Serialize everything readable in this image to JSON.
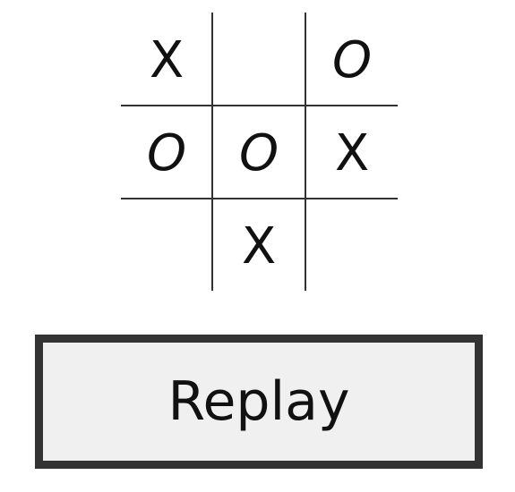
{
  "board": {
    "cells": [
      "X",
      "",
      "O",
      "O",
      "O",
      "X",
      "",
      "X",
      ""
    ]
  },
  "replay_button": {
    "label": "Replay"
  },
  "colors": {
    "background": "#ffffff",
    "grid_line": "#333333",
    "mark": "#111111",
    "button_border": "#333333",
    "button_fill": "#f0f0f0"
  }
}
